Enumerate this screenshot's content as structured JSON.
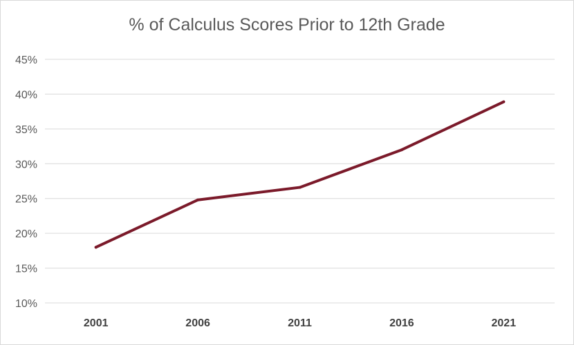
{
  "chart_data": {
    "type": "line",
    "title": "% of Calculus Scores Prior to 12th Grade",
    "xlabel": "",
    "ylabel": "",
    "categories": [
      "2001",
      "2006",
      "2011",
      "2016",
      "2021"
    ],
    "series": [
      {
        "values": [
          0.18,
          0.248,
          0.266,
          0.32,
          0.389
        ]
      }
    ],
    "ylim": [
      0.1,
      0.45
    ],
    "yticks": [
      0.1,
      0.15,
      0.2,
      0.25,
      0.3,
      0.35,
      0.4,
      0.45
    ],
    "ytick_labels": [
      "10%",
      "15%",
      "20%",
      "25%",
      "30%",
      "35%",
      "40%",
      "45%"
    ],
    "grid": true,
    "legend": "none",
    "line_color": "#7b1a2a",
    "grid_color": "#d9d9d9"
  }
}
